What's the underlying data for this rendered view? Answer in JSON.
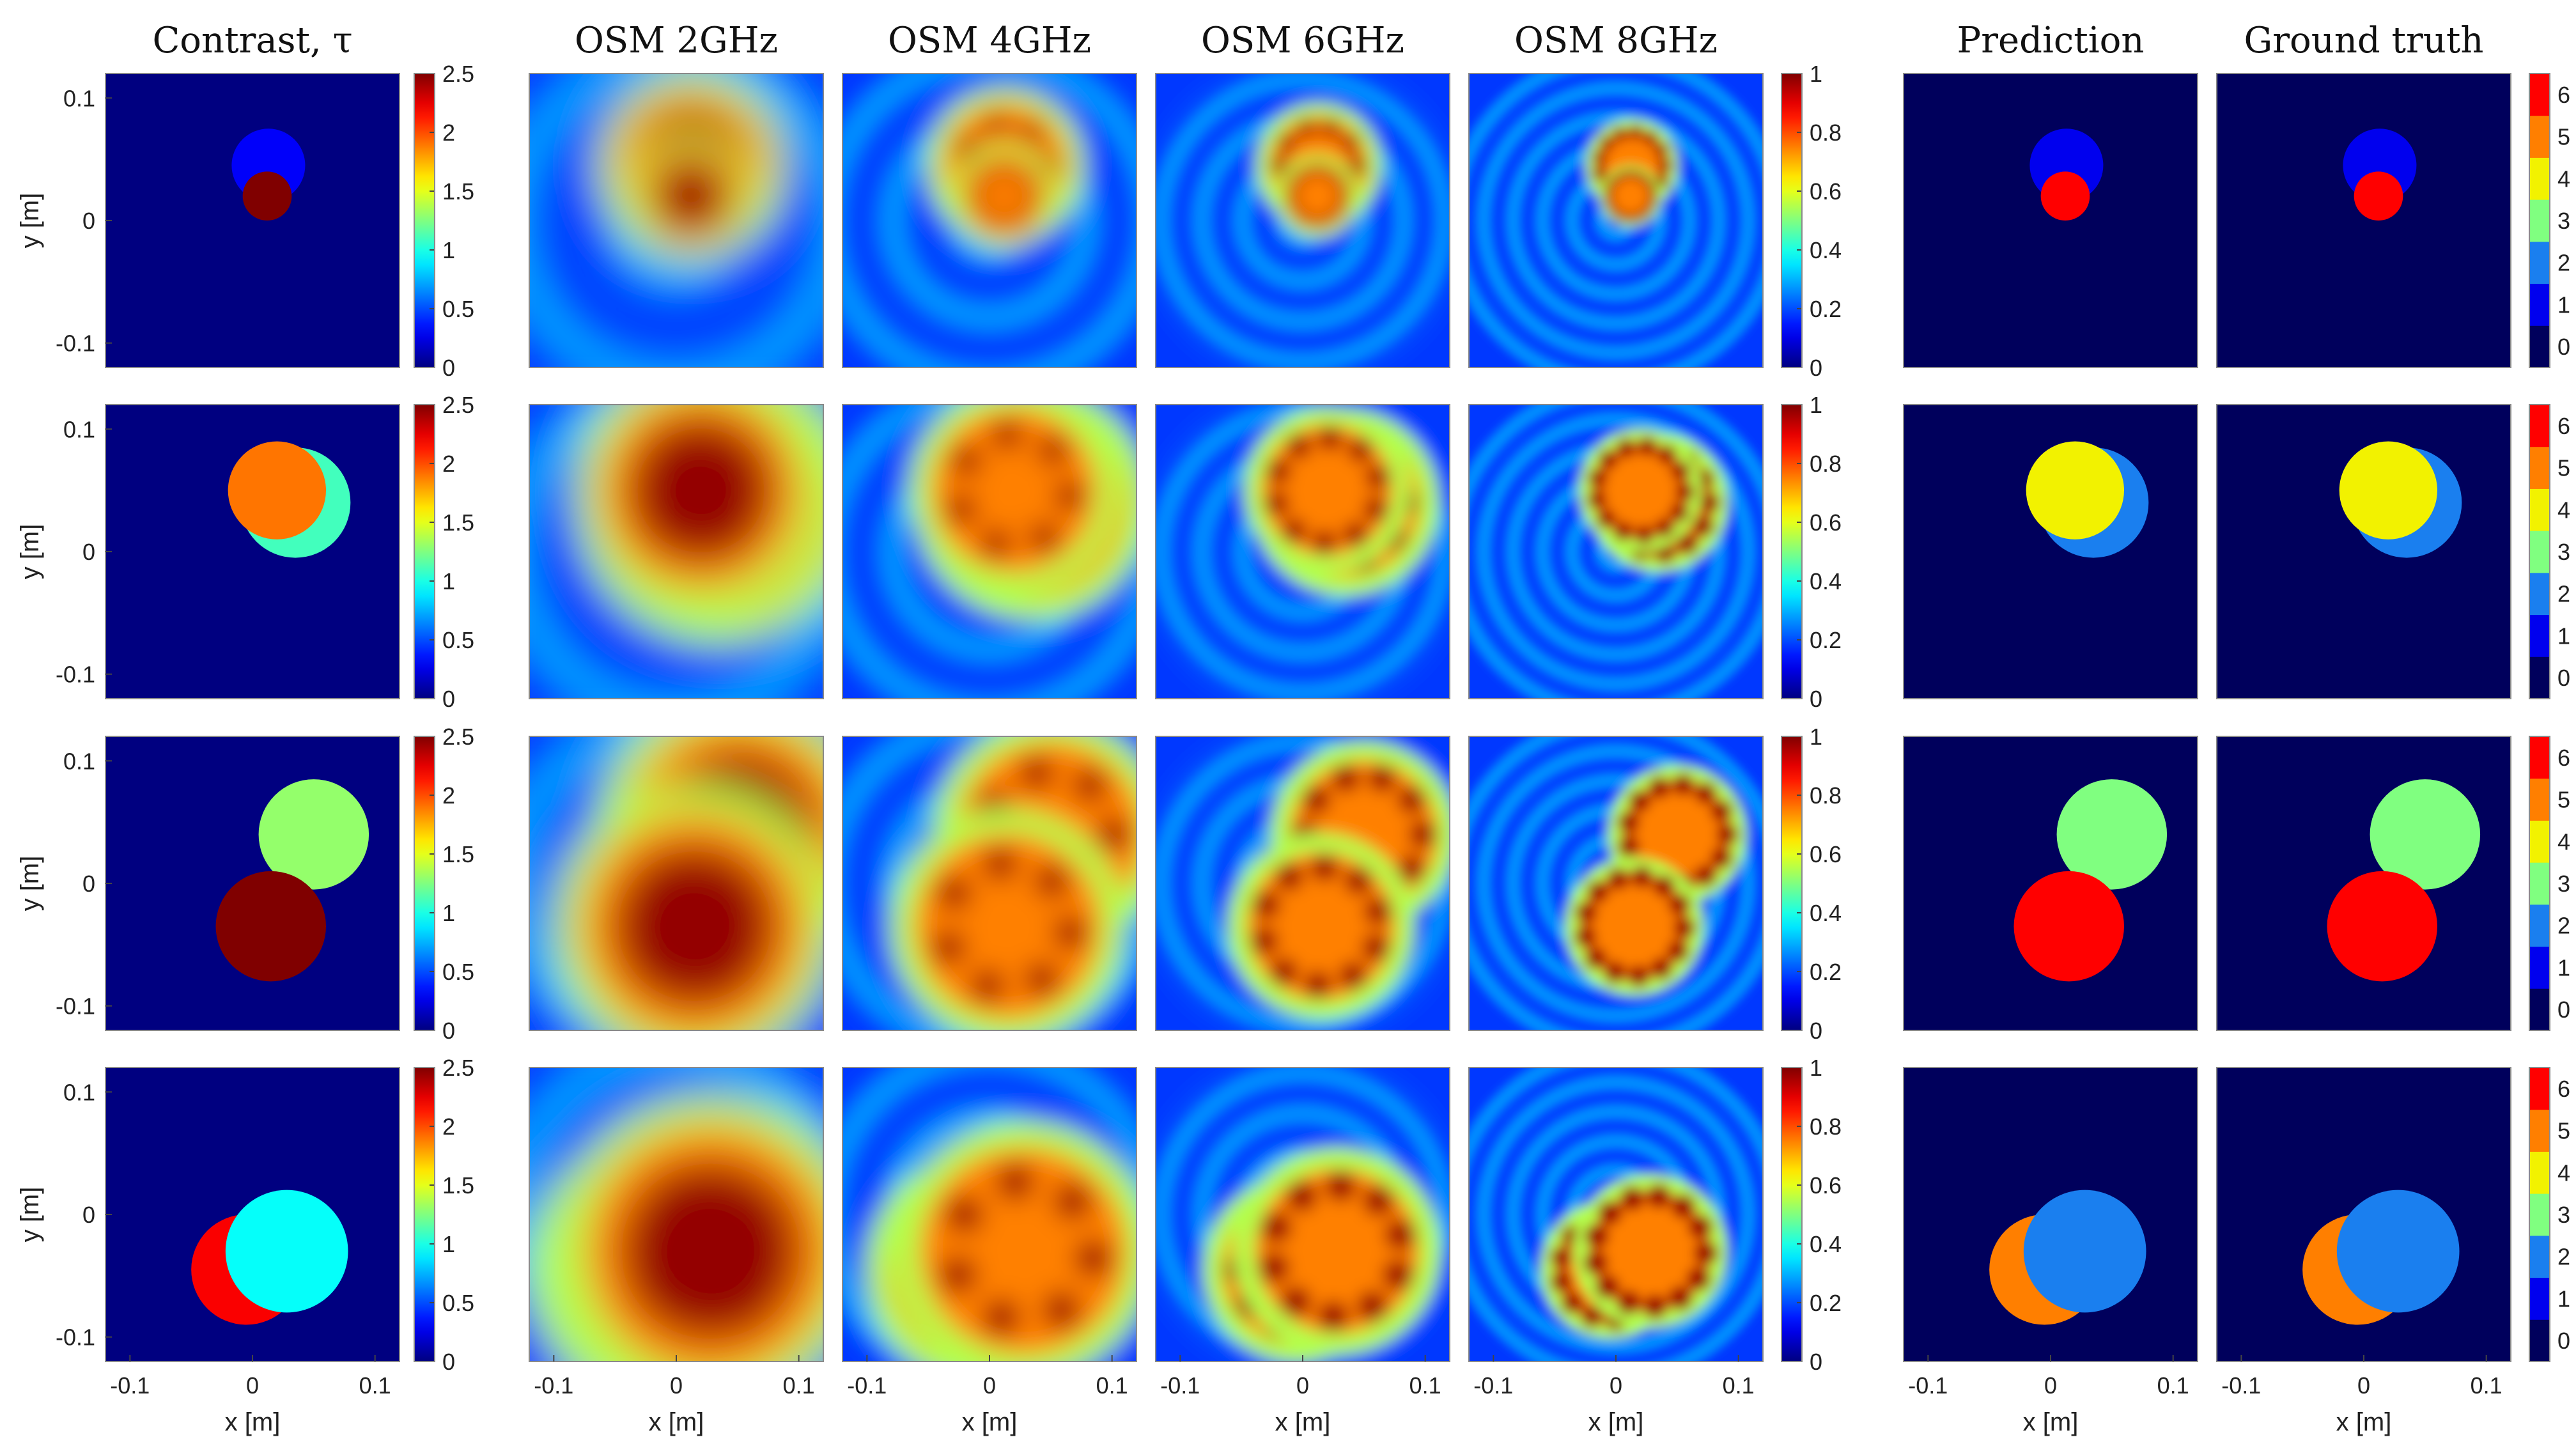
{
  "chart_data": {
    "type": "heatmap",
    "column_titles": [
      "Contrast, τ",
      "OSM 2GHz",
      "OSM 4GHz",
      "OSM 6GHz",
      "OSM 8GHz",
      "Prediction",
      "Ground truth"
    ],
    "xlabel": "x [m]",
    "ylabel": "y [m]",
    "xlim": [
      -0.12,
      0.12
    ],
    "ylim": [
      -0.12,
      0.12
    ],
    "x_ticks": [
      "-0.1",
      "0",
      "0.1"
    ],
    "y_ticks": [
      "0.1",
      "0",
      "-0.1"
    ],
    "colorbars": {
      "contrast": {
        "range": [
          0,
          2.5
        ],
        "ticks": [
          "2.5",
          "2",
          "1.5",
          "1",
          "0.5",
          "0"
        ],
        "colormap": "jet"
      },
      "osm": {
        "range": [
          0,
          1
        ],
        "ticks": [
          "1",
          "0.8",
          "0.6",
          "0.4",
          "0.2",
          "0"
        ],
        "colormap": "jet"
      },
      "classes": {
        "range": [
          0,
          6
        ],
        "ticks": [
          "6",
          "5",
          "4",
          "3",
          "2",
          "1",
          "0"
        ],
        "colormap": "jet-7-levels"
      }
    },
    "rows": [
      {
        "contrast_circles": [
          {
            "cx": 0.013,
            "cy": 0.045,
            "r": 0.03,
            "tau": 0.3
          },
          {
            "cx": 0.012,
            "cy": 0.02,
            "r": 0.02,
            "tau": 2.5
          }
        ],
        "prediction_classes": [
          {
            "cx": 0.013,
            "cy": 0.045,
            "r": 0.03,
            "class": 1
          },
          {
            "cx": 0.012,
            "cy": 0.02,
            "r": 0.02,
            "class": 6
          }
        ],
        "ground_truth_classes": [
          {
            "cx": 0.013,
            "cy": 0.045,
            "r": 0.03,
            "class": 1
          },
          {
            "cx": 0.012,
            "cy": 0.02,
            "r": 0.02,
            "class": 6
          }
        ]
      },
      {
        "contrast_circles": [
          {
            "cx": 0.035,
            "cy": 0.04,
            "r": 0.045,
            "tau": 1.1
          },
          {
            "cx": 0.02,
            "cy": 0.05,
            "r": 0.04,
            "tau": 1.9
          }
        ],
        "prediction_classes": [
          {
            "cx": 0.035,
            "cy": 0.04,
            "r": 0.045,
            "class": 2
          },
          {
            "cx": 0.02,
            "cy": 0.05,
            "r": 0.04,
            "class": 4
          }
        ],
        "ground_truth_classes": [
          {
            "cx": 0.035,
            "cy": 0.04,
            "r": 0.045,
            "class": 2
          },
          {
            "cx": 0.02,
            "cy": 0.05,
            "r": 0.04,
            "class": 4
          }
        ]
      },
      {
        "contrast_circles": [
          {
            "cx": 0.05,
            "cy": 0.04,
            "r": 0.045,
            "tau": 1.3
          },
          {
            "cx": 0.015,
            "cy": -0.035,
            "r": 0.045,
            "tau": 2.5
          }
        ],
        "prediction_classes": [
          {
            "cx": 0.05,
            "cy": 0.04,
            "r": 0.045,
            "class": 3
          },
          {
            "cx": 0.015,
            "cy": -0.035,
            "r": 0.045,
            "class": 6
          }
        ],
        "ground_truth_classes": [
          {
            "cx": 0.05,
            "cy": 0.04,
            "r": 0.045,
            "class": 3
          },
          {
            "cx": 0.015,
            "cy": -0.035,
            "r": 0.045,
            "class": 6
          }
        ]
      },
      {
        "contrast_circles": [
          {
            "cx": -0.005,
            "cy": -0.045,
            "r": 0.045,
            "tau": 2.2
          },
          {
            "cx": 0.028,
            "cy": -0.03,
            "r": 0.05,
            "tau": 0.95
          }
        ],
        "prediction_classes": [
          {
            "cx": -0.005,
            "cy": -0.045,
            "r": 0.045,
            "class": 5
          },
          {
            "cx": 0.028,
            "cy": -0.03,
            "r": 0.05,
            "class": 2
          }
        ],
        "ground_truth_classes": [
          {
            "cx": -0.005,
            "cy": -0.045,
            "r": 0.045,
            "class": 5
          },
          {
            "cx": 0.028,
            "cy": -0.03,
            "r": 0.05,
            "class": 2
          }
        ]
      }
    ]
  }
}
